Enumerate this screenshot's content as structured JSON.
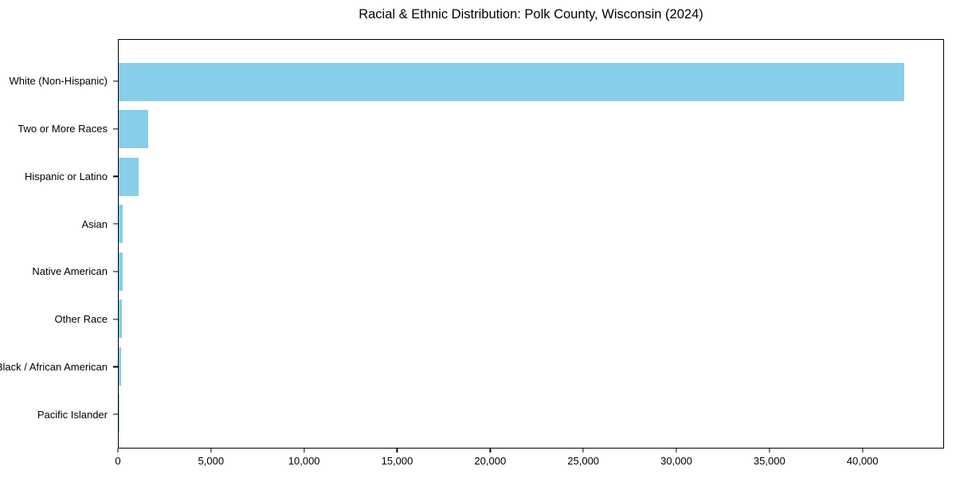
{
  "chart_data": {
    "type": "bar",
    "orientation": "horizontal",
    "title": "Racial & Ethnic Distribution: Polk County, Wisconsin (2024)",
    "xlabel": "",
    "ylabel": "",
    "categories": [
      "White (Non-Hispanic)",
      "Two or More Races",
      "Hispanic or Latino",
      "Asian",
      "Native American",
      "Other Race",
      "Black / African American",
      "Pacific Islander"
    ],
    "values": [
      42270,
      1570,
      1060,
      220,
      210,
      180,
      130,
      10
    ],
    "xlim": [
      0,
      44380
    ],
    "xticks": [
      0,
      5000,
      10000,
      15000,
      20000,
      25000,
      30000,
      35000,
      40000
    ],
    "xtick_labels": [
      "0",
      "5,000",
      "10,000",
      "15,000",
      "20,000",
      "25,000",
      "30,000",
      "35,000",
      "40,000"
    ],
    "bar_color": "#87CEEB",
    "axis_color": "#000000",
    "text_color": "#000000",
    "background_color": "#ffffff",
    "grid": false,
    "legend": null
  }
}
